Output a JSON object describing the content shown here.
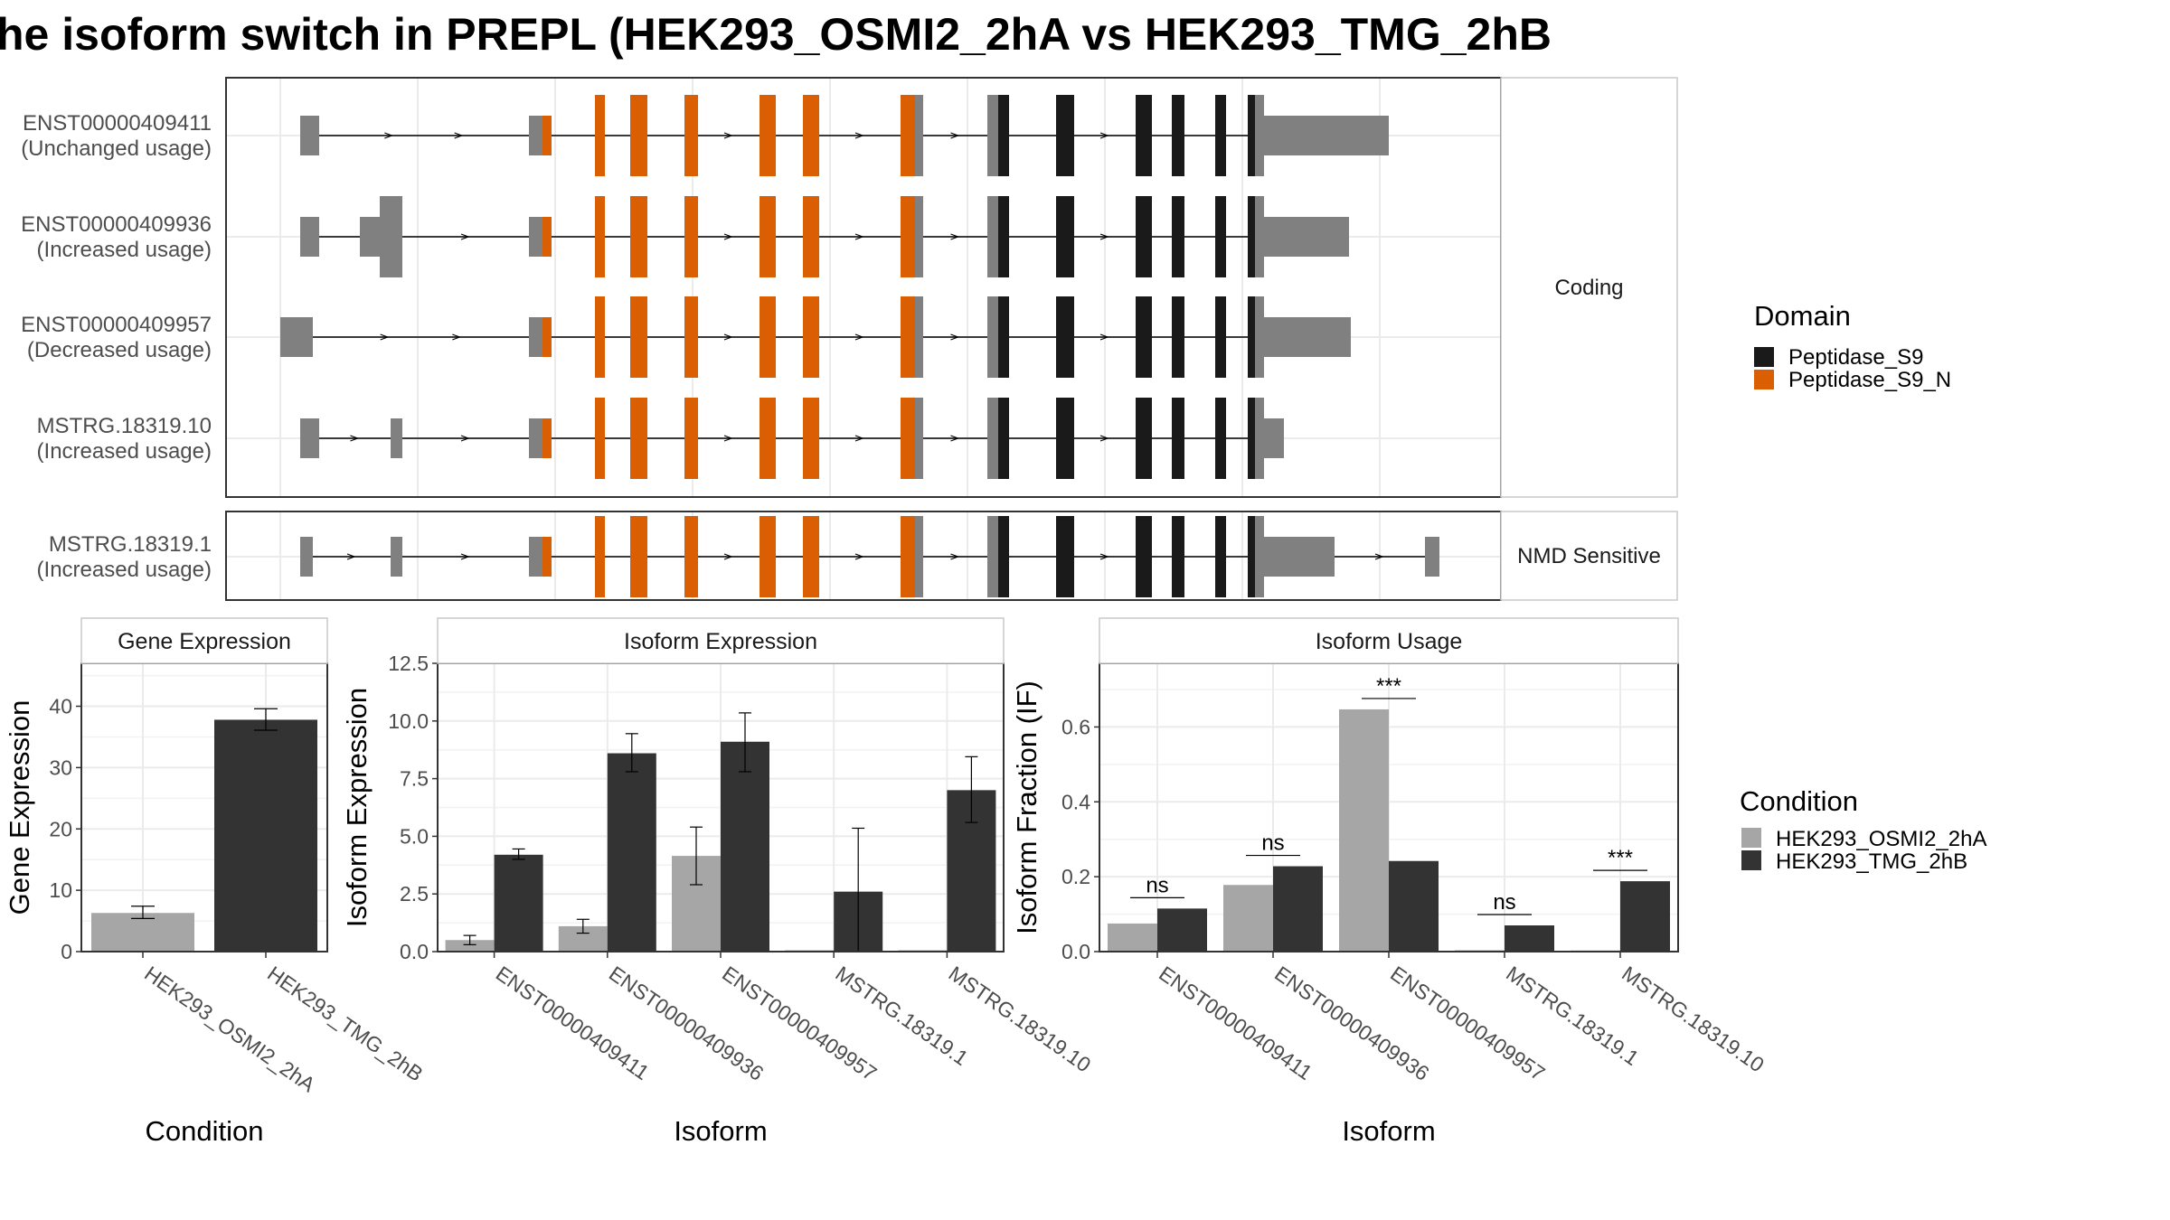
{
  "title": "he isoform switch in PREPL (HEK293_OSMI2_2hA vs HEK293_TMG_2hB",
  "structure": {
    "facets": [
      {
        "label": "Coding",
        "rows": [
          0,
          1,
          2,
          3
        ]
      },
      {
        "label": "NMD Sensitive",
        "rows": [
          4
        ]
      }
    ],
    "transcripts": [
      {
        "id": "ENST00000409411",
        "usage": "(Unchanged usage)"
      },
      {
        "id": "ENST00000409936",
        "usage": "(Increased usage)"
      },
      {
        "id": "ENST00000409957",
        "usage": "(Decreased usage)"
      },
      {
        "id": "MSTRG.18319.10",
        "usage": "(Increased usage)"
      },
      {
        "id": "MSTRG.18319.1",
        "usage": "(Increased usage)"
      }
    ],
    "domain_legend": {
      "title": "Domain",
      "items": [
        {
          "label": "Peptidase_S9",
          "color": "#1a1a1a"
        },
        {
          "label": "Peptidase_S9_N",
          "color": "#d95f02"
        }
      ]
    },
    "exon_color": "#808080"
  },
  "condition_legend": {
    "title": "Condition",
    "items": [
      {
        "label": "HEK293_OSMI2_2hA",
        "color": "#a6a6a6"
      },
      {
        "label": "HEK293_TMG_2hB",
        "color": "#333333"
      }
    ]
  },
  "chart_data": [
    {
      "type": "bar",
      "title": "Gene Expression",
      "xlabel": "Condition",
      "ylabel": "Gene Expression",
      "categories": [
        "HEK293_OSMI2_2hA",
        "HEK293_TMG_2hB"
      ],
      "values": [
        6.3,
        37.8
      ],
      "error": [
        [
          5.4,
          7.4
        ],
        [
          36.1,
          39.6
        ]
      ],
      "ylim": [
        0,
        47
      ],
      "yticks": [
        0,
        10,
        20,
        30,
        40
      ]
    },
    {
      "type": "bar",
      "title": "Isoform Expression",
      "xlabel": "Isoform",
      "ylabel": "Isoform Expression",
      "categories": [
        "ENST00000409411",
        "ENST00000409936",
        "ENST00000409957",
        "MSTRG.18319.1",
        "MSTRG.18319.10"
      ],
      "series": [
        {
          "name": "HEK293_OSMI2_2hA",
          "values": [
            0.5,
            1.1,
            4.15,
            0.0,
            0.0
          ],
          "error": [
            [
              0.3,
              0.7
            ],
            [
              0.8,
              1.4
            ],
            [
              2.9,
              5.4
            ],
            [
              0.0,
              0.0
            ],
            [
              0.0,
              0.0
            ]
          ]
        },
        {
          "name": "HEK293_TMG_2hB",
          "values": [
            4.2,
            8.6,
            9.1,
            2.6,
            7.0
          ],
          "error": [
            [
              4.0,
              4.45
            ],
            [
              7.8,
              9.45
            ],
            [
              7.8,
              10.35
            ],
            [
              0.0,
              5.35
            ],
            [
              5.6,
              8.45
            ]
          ]
        }
      ],
      "ylim": [
        0,
        12.5
      ],
      "yticks": [
        "0.0",
        "2.5",
        "5.0",
        "7.5",
        "10.0",
        "12.5"
      ]
    },
    {
      "type": "bar",
      "title": "Isoform Usage",
      "xlabel": "Isoform",
      "ylabel": "Isoform Fraction (IF)",
      "categories": [
        "ENST00000409411",
        "ENST00000409936",
        "ENST00000409957",
        "MSTRG.18319.1",
        "MSTRG.18319.10"
      ],
      "series": [
        {
          "name": "HEK293_OSMI2_2hA",
          "values": [
            0.075,
            0.178,
            0.647,
            0.0,
            0.003
          ]
        },
        {
          "name": "HEK293_TMG_2hB",
          "values": [
            0.115,
            0.228,
            0.242,
            0.07,
            0.188
          ]
        }
      ],
      "significance": [
        "ns",
        "ns",
        "***",
        "ns",
        "***"
      ],
      "ylim": [
        0,
        0.77
      ],
      "yticks": [
        "0.0",
        "0.2",
        "0.4",
        "0.6"
      ]
    }
  ]
}
